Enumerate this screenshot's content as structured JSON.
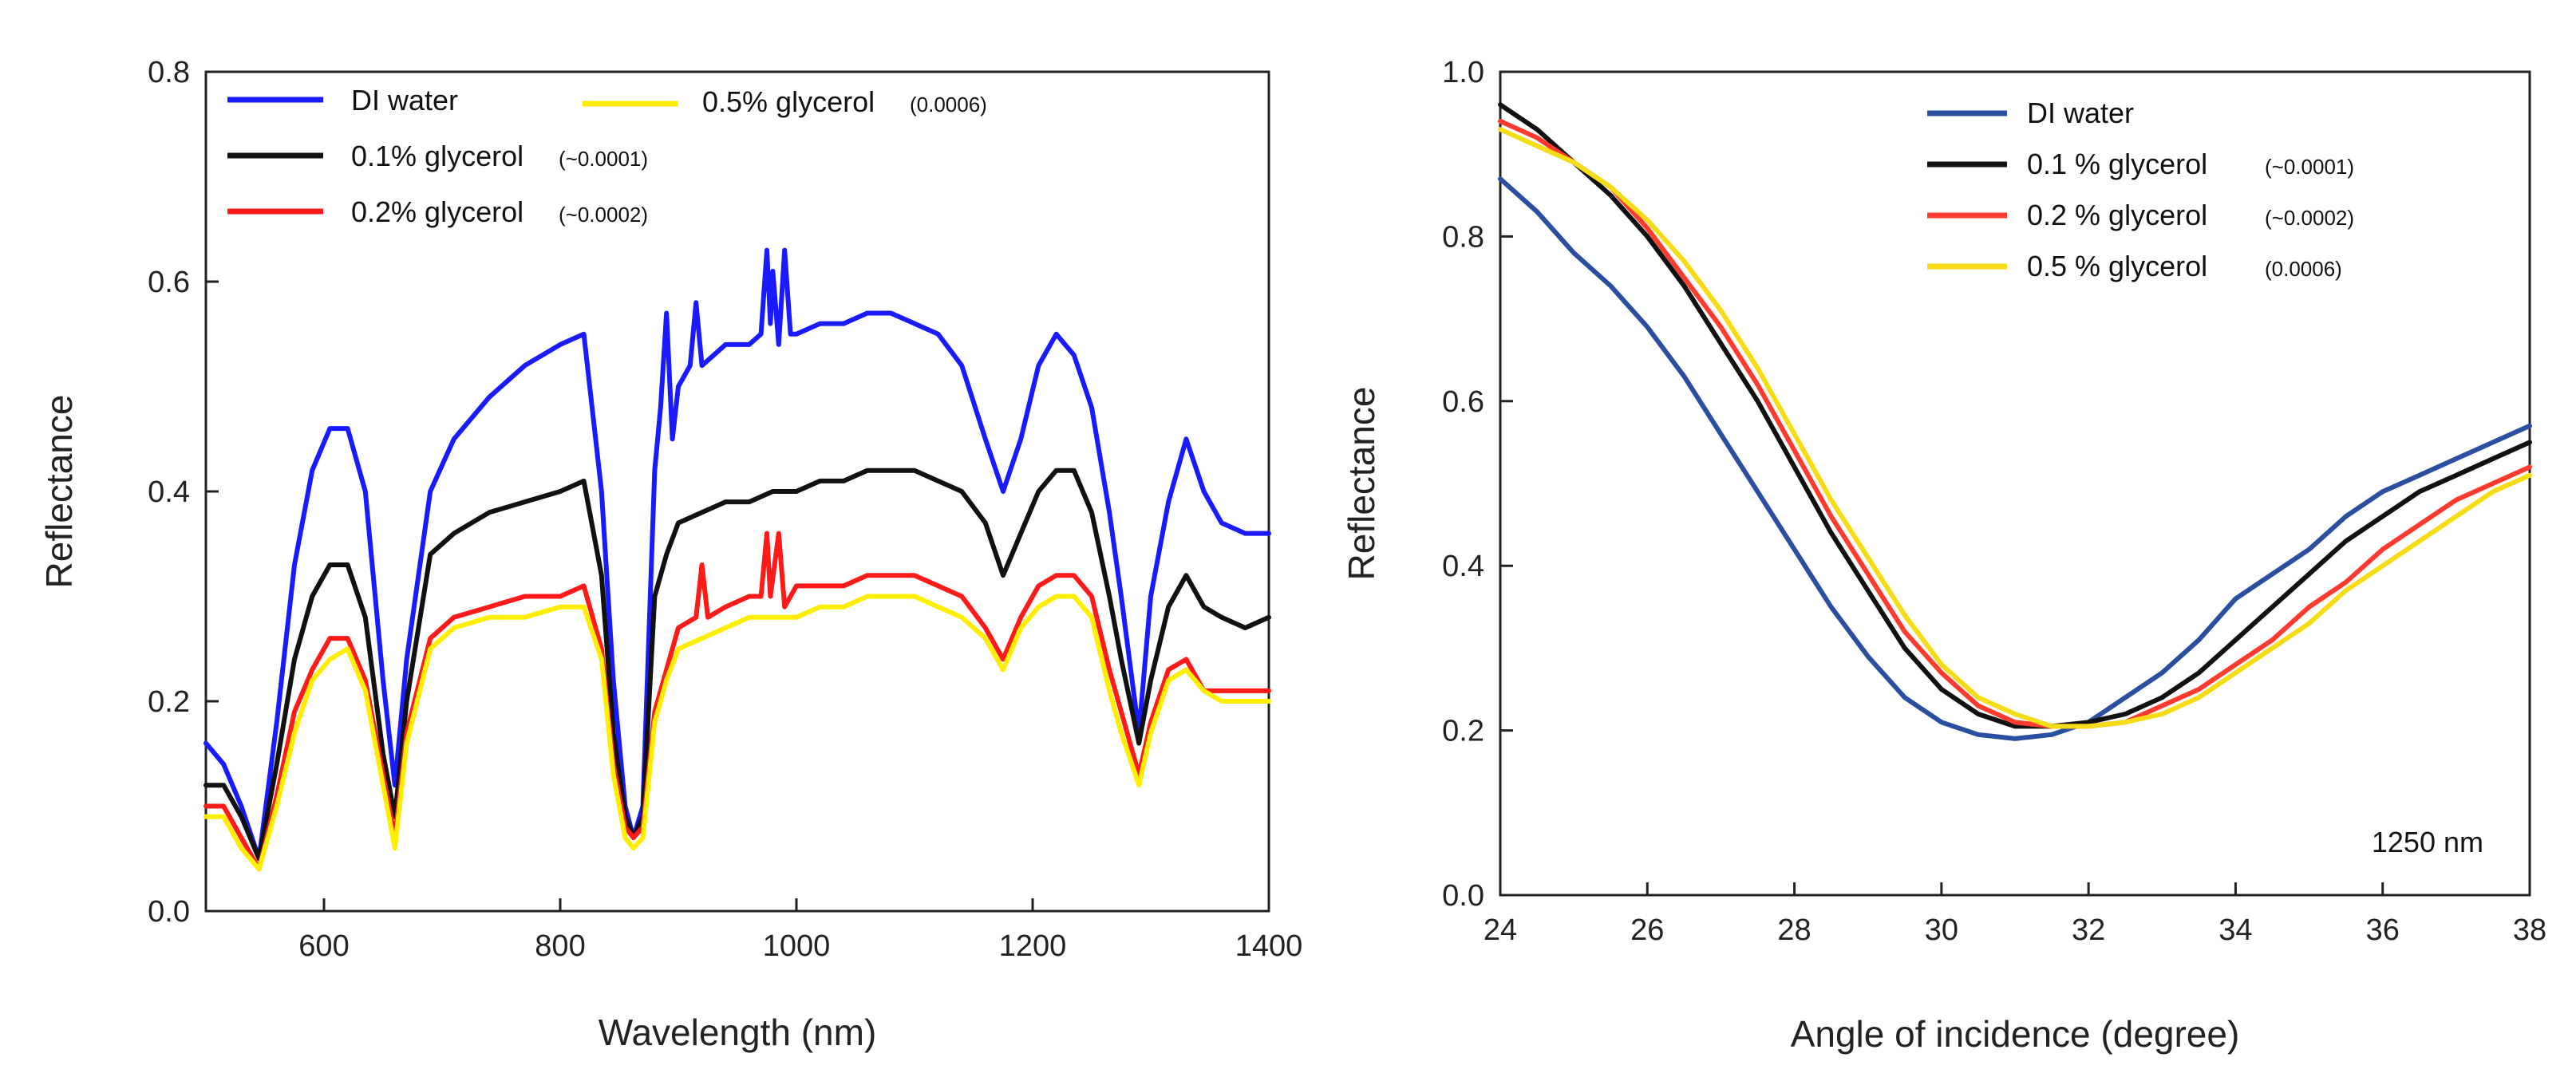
{
  "chart_data": [
    {
      "type": "line",
      "title": "",
      "xlabel": "Wavelength (nm)",
      "ylabel": "Reflectance",
      "xlim": [
        500,
        1400
      ],
      "ylim": [
        0.0,
        0.8
      ],
      "xticks": [
        600,
        800,
        1000,
        1200,
        1400
      ],
      "xtick_labels": [
        "600",
        "800",
        "1000",
        "1200",
        "1400"
      ],
      "yticks": [
        0.0,
        0.2,
        0.4,
        0.6,
        0.8
      ],
      "ytick_labels": [
        "0.0",
        "0.2",
        "0.4",
        "0.6",
        "0.8"
      ],
      "grid": false,
      "legend_position": "top-left",
      "series": [
        {
          "name": "DI water",
          "name_sub": "",
          "color": "#1a1aff",
          "x": [
            500,
            515,
            530,
            545,
            560,
            575,
            590,
            605,
            620,
            635,
            650,
            660,
            670,
            690,
            710,
            740,
            770,
            800,
            820,
            835,
            845,
            855,
            862,
            870,
            880,
            885,
            890,
            895,
            900,
            910,
            915,
            920,
            930,
            940,
            960,
            970,
            975,
            978,
            980,
            985,
            990,
            995,
            1000,
            1020,
            1040,
            1060,
            1080,
            1100,
            1120,
            1140,
            1160,
            1175,
            1190,
            1205,
            1220,
            1235,
            1250,
            1265,
            1275,
            1290,
            1300,
            1315,
            1330,
            1345,
            1360,
            1380,
            1400
          ],
          "y": [
            0.16,
            0.14,
            0.1,
            0.05,
            0.18,
            0.33,
            0.42,
            0.46,
            0.46,
            0.4,
            0.22,
            0.12,
            0.24,
            0.4,
            0.45,
            0.49,
            0.52,
            0.54,
            0.55,
            0.4,
            0.22,
            0.1,
            0.07,
            0.1,
            0.42,
            0.48,
            0.57,
            0.45,
            0.5,
            0.52,
            0.58,
            0.52,
            0.53,
            0.54,
            0.54,
            0.55,
            0.63,
            0.56,
            0.61,
            0.54,
            0.63,
            0.55,
            0.55,
            0.56,
            0.56,
            0.57,
            0.57,
            0.56,
            0.55,
            0.52,
            0.45,
            0.4,
            0.45,
            0.52,
            0.55,
            0.53,
            0.48,
            0.38,
            0.3,
            0.17,
            0.3,
            0.39,
            0.45,
            0.4,
            0.37,
            0.36,
            0.36
          ]
        },
        {
          "name": "0.1% glycerol",
          "name_sub": "(~0.0001)",
          "color": "#111111",
          "x": [
            500,
            515,
            530,
            545,
            560,
            575,
            590,
            605,
            620,
            635,
            650,
            660,
            670,
            690,
            710,
            740,
            770,
            800,
            820,
            835,
            845,
            855,
            862,
            870,
            880,
            890,
            900,
            920,
            940,
            960,
            980,
            1000,
            1020,
            1040,
            1060,
            1080,
            1100,
            1120,
            1140,
            1160,
            1175,
            1190,
            1205,
            1220,
            1235,
            1250,
            1265,
            1275,
            1290,
            1300,
            1315,
            1330,
            1345,
            1360,
            1380,
            1400
          ],
          "y": [
            0.12,
            0.12,
            0.09,
            0.05,
            0.14,
            0.24,
            0.3,
            0.33,
            0.33,
            0.28,
            0.15,
            0.09,
            0.2,
            0.34,
            0.36,
            0.38,
            0.39,
            0.4,
            0.41,
            0.32,
            0.17,
            0.09,
            0.07,
            0.09,
            0.3,
            0.34,
            0.37,
            0.38,
            0.39,
            0.39,
            0.4,
            0.4,
            0.41,
            0.41,
            0.42,
            0.42,
            0.42,
            0.41,
            0.4,
            0.37,
            0.32,
            0.36,
            0.4,
            0.42,
            0.42,
            0.38,
            0.3,
            0.24,
            0.16,
            0.22,
            0.29,
            0.32,
            0.29,
            0.28,
            0.27,
            0.28
          ]
        },
        {
          "name": "0.2% glycerol",
          "name_sub": "(~0.0002)",
          "color": "#ff1a1a",
          "x": [
            500,
            515,
            530,
            545,
            560,
            575,
            590,
            605,
            620,
            635,
            650,
            660,
            670,
            690,
            710,
            740,
            770,
            800,
            820,
            835,
            845,
            855,
            862,
            870,
            880,
            890,
            900,
            915,
            920,
            925,
            940,
            960,
            970,
            975,
            978,
            985,
            990,
            995,
            1000,
            1020,
            1040,
            1060,
            1080,
            1100,
            1120,
            1140,
            1160,
            1175,
            1190,
            1205,
            1220,
            1235,
            1250,
            1265,
            1275,
            1290,
            1300,
            1315,
            1330,
            1345,
            1360,
            1380,
            1400
          ],
          "y": [
            0.1,
            0.1,
            0.07,
            0.04,
            0.11,
            0.19,
            0.23,
            0.26,
            0.26,
            0.22,
            0.13,
            0.07,
            0.17,
            0.26,
            0.28,
            0.29,
            0.3,
            0.3,
            0.31,
            0.25,
            0.14,
            0.08,
            0.07,
            0.08,
            0.19,
            0.23,
            0.27,
            0.28,
            0.33,
            0.28,
            0.29,
            0.3,
            0.3,
            0.36,
            0.3,
            0.36,
            0.29,
            0.3,
            0.31,
            0.31,
            0.31,
            0.32,
            0.32,
            0.32,
            0.31,
            0.3,
            0.27,
            0.24,
            0.28,
            0.31,
            0.32,
            0.32,
            0.3,
            0.23,
            0.19,
            0.13,
            0.18,
            0.23,
            0.24,
            0.21,
            0.21,
            0.21,
            0.21
          ]
        },
        {
          "name": "0.5% glycerol",
          "name_sub": "(0.0006)",
          "color": "#ffee00",
          "x": [
            500,
            515,
            530,
            545,
            560,
            575,
            590,
            605,
            620,
            635,
            650,
            660,
            670,
            690,
            710,
            740,
            770,
            800,
            820,
            835,
            845,
            855,
            862,
            870,
            880,
            890,
            900,
            920,
            940,
            960,
            980,
            1000,
            1020,
            1040,
            1060,
            1080,
            1100,
            1120,
            1140,
            1160,
            1175,
            1190,
            1205,
            1220,
            1235,
            1250,
            1265,
            1275,
            1290,
            1300,
            1315,
            1330,
            1345,
            1360,
            1380,
            1400
          ],
          "y": [
            0.09,
            0.09,
            0.06,
            0.04,
            0.1,
            0.17,
            0.22,
            0.24,
            0.25,
            0.21,
            0.12,
            0.06,
            0.16,
            0.25,
            0.27,
            0.28,
            0.28,
            0.29,
            0.29,
            0.24,
            0.13,
            0.07,
            0.06,
            0.07,
            0.18,
            0.22,
            0.25,
            0.26,
            0.27,
            0.28,
            0.28,
            0.28,
            0.29,
            0.29,
            0.3,
            0.3,
            0.3,
            0.29,
            0.28,
            0.26,
            0.23,
            0.27,
            0.29,
            0.3,
            0.3,
            0.28,
            0.21,
            0.17,
            0.12,
            0.17,
            0.22,
            0.23,
            0.21,
            0.2,
            0.2,
            0.2
          ]
        }
      ]
    },
    {
      "type": "line",
      "title": "",
      "xlabel": "Angle of incidence (degree)",
      "ylabel": "Reflectance",
      "xlim": [
        24,
        38
      ],
      "ylim": [
        0.0,
        1.0
      ],
      "xticks": [
        24,
        26,
        28,
        30,
        32,
        34,
        36,
        38
      ],
      "xtick_labels": [
        "24",
        "26",
        "28",
        "30",
        "32",
        "34",
        "36",
        "38"
      ],
      "yticks": [
        0.0,
        0.2,
        0.4,
        0.6,
        0.8,
        1.0
      ],
      "ytick_labels": [
        "0.0",
        "0.2",
        "0.4",
        "0.6",
        "0.8",
        "1.0"
      ],
      "grid": false,
      "legend_position": "top-right",
      "annotation": "1250 nm",
      "series": [
        {
          "name": "DI water",
          "name_sub": "",
          "color": "#2b4fa0",
          "x": [
            24,
            24.5,
            25,
            25.5,
            26,
            26.5,
            27,
            27.5,
            28,
            28.5,
            29,
            29.5,
            30,
            30.5,
            31,
            31.5,
            32,
            32.5,
            33,
            33.5,
            34,
            34.5,
            35,
            35.5,
            36,
            36.5,
            37,
            37.5,
            38
          ],
          "y": [
            0.87,
            0.83,
            0.78,
            0.74,
            0.69,
            0.63,
            0.56,
            0.49,
            0.42,
            0.35,
            0.29,
            0.24,
            0.21,
            0.195,
            0.19,
            0.195,
            0.21,
            0.24,
            0.27,
            0.31,
            0.36,
            0.39,
            0.42,
            0.46,
            0.49,
            0.51,
            0.53,
            0.55,
            0.57
          ]
        },
        {
          "name": "0.1 % glycerol",
          "name_sub": "(~0.0001)",
          "color": "#111111",
          "x": [
            24,
            24.5,
            25,
            25.5,
            26,
            26.5,
            27,
            27.5,
            28,
            28.5,
            29,
            29.5,
            30,
            30.5,
            31,
            31.5,
            32,
            32.5,
            33,
            33.5,
            34,
            34.5,
            35,
            35.5,
            36,
            36.5,
            37,
            37.5,
            38
          ],
          "y": [
            0.96,
            0.93,
            0.89,
            0.85,
            0.8,
            0.74,
            0.67,
            0.6,
            0.52,
            0.44,
            0.37,
            0.3,
            0.25,
            0.22,
            0.205,
            0.205,
            0.21,
            0.22,
            0.24,
            0.27,
            0.31,
            0.35,
            0.39,
            0.43,
            0.46,
            0.49,
            0.51,
            0.53,
            0.55
          ]
        },
        {
          "name": "0.2 % glycerol",
          "name_sub": "(~0.0002)",
          "color": "#ff3b2f",
          "x": [
            24,
            24.5,
            25,
            25.5,
            26,
            26.5,
            27,
            27.5,
            28,
            28.5,
            29,
            29.5,
            30,
            30.5,
            31,
            31.5,
            32,
            32.5,
            33,
            33.5,
            34,
            34.5,
            35,
            35.5,
            36,
            36.5,
            37,
            37.5,
            38
          ],
          "y": [
            0.94,
            0.92,
            0.89,
            0.86,
            0.81,
            0.75,
            0.69,
            0.62,
            0.54,
            0.46,
            0.39,
            0.32,
            0.27,
            0.23,
            0.21,
            0.205,
            0.205,
            0.21,
            0.23,
            0.25,
            0.28,
            0.31,
            0.35,
            0.38,
            0.42,
            0.45,
            0.48,
            0.5,
            0.52
          ]
        },
        {
          "name": "0.5 % glycerol",
          "name_sub": "(0.0006)",
          "color": "#f5dc14",
          "x": [
            24,
            24.5,
            25,
            25.5,
            26,
            26.5,
            27,
            27.5,
            28,
            28.5,
            29,
            29.5,
            30,
            30.5,
            31,
            31.5,
            32,
            32.5,
            33,
            33.5,
            34,
            34.5,
            35,
            35.5,
            36,
            36.5,
            37,
            37.5,
            38
          ],
          "y": [
            0.93,
            0.91,
            0.89,
            0.86,
            0.82,
            0.77,
            0.71,
            0.64,
            0.56,
            0.48,
            0.41,
            0.34,
            0.28,
            0.24,
            0.22,
            0.205,
            0.205,
            0.21,
            0.22,
            0.24,
            0.27,
            0.3,
            0.33,
            0.37,
            0.4,
            0.43,
            0.46,
            0.49,
            0.51
          ]
        }
      ]
    }
  ]
}
